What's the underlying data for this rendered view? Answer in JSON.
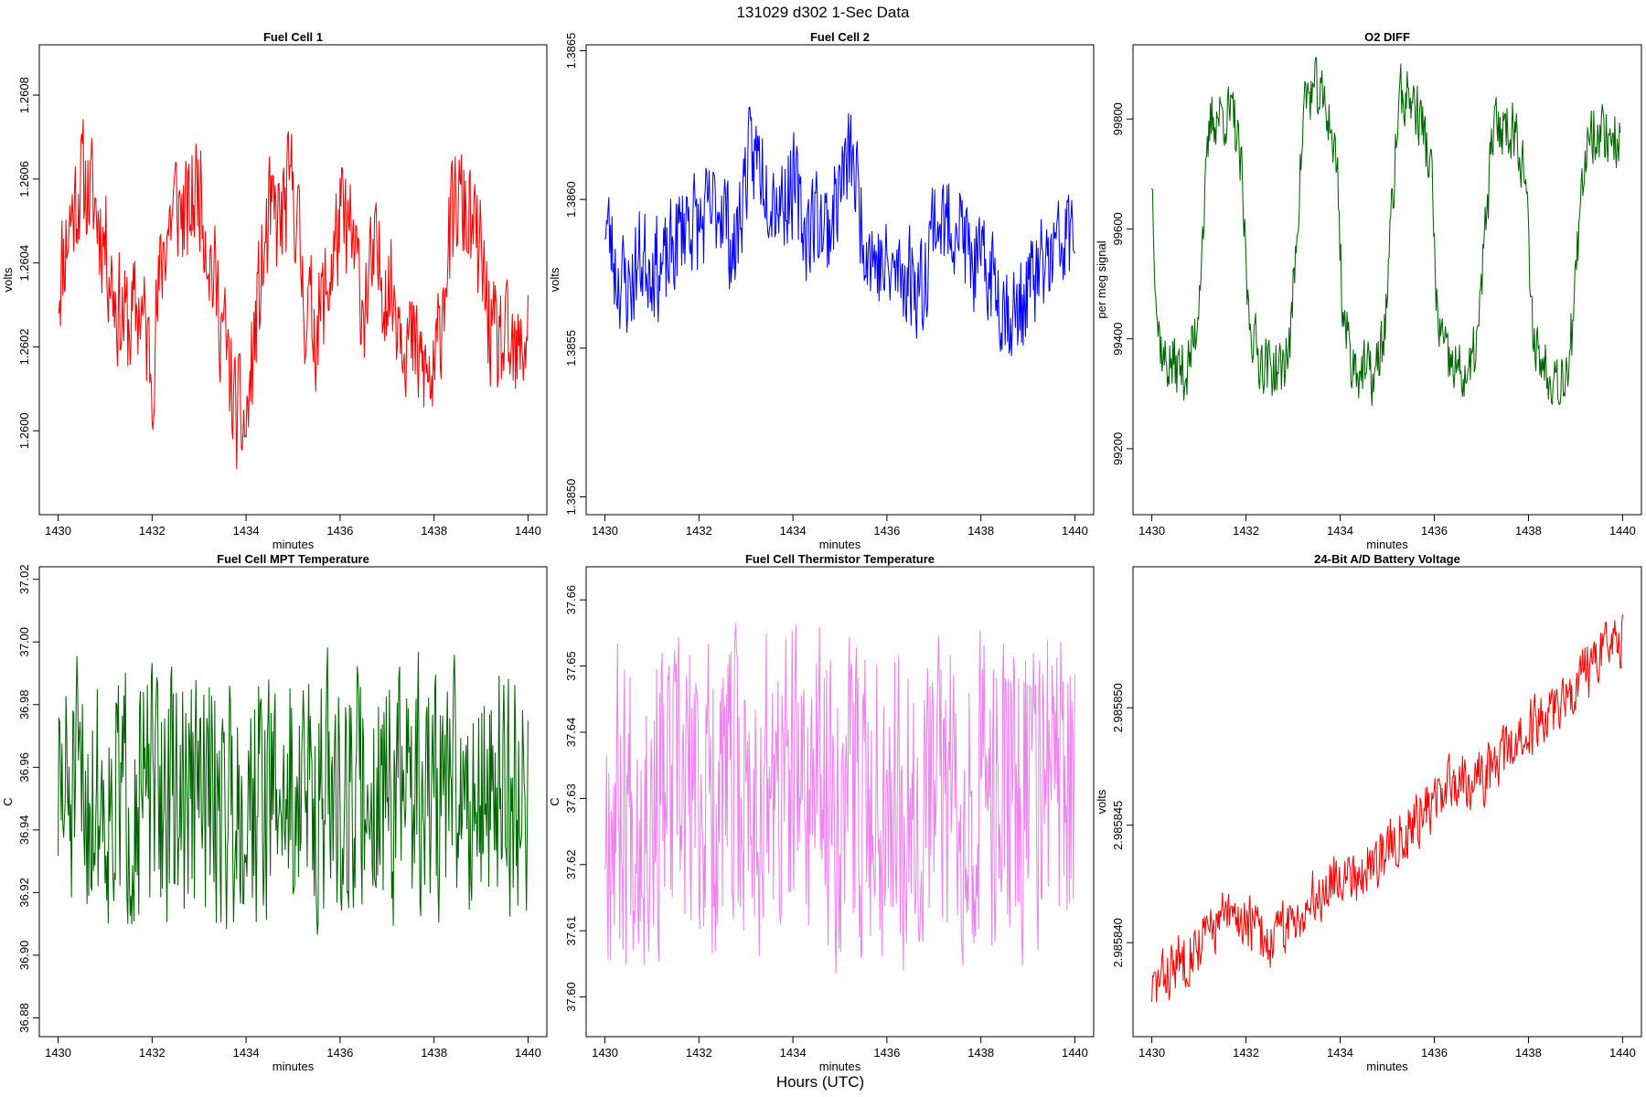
{
  "figure": {
    "title": "131029   d302   1-Sec Data",
    "common_xlabel": "Hours (UTC)"
  },
  "chart_data": [
    {
      "type": "line",
      "title": "Fuel Cell 1",
      "xlabel": "minutes",
      "ylabel": "volts",
      "color": "#ff0000",
      "xlim": [
        1429.6,
        1440.4
      ],
      "ylim": [
        1.2598,
        1.26092
      ],
      "xticks": [
        1430,
        1432,
        1434,
        1436,
        1438,
        1440
      ],
      "xtick_labels": [
        "1430",
        "1432",
        "1434",
        "1436",
        "1438",
        "1440"
      ],
      "yticks": [
        1.26,
        1.2602,
        1.2604,
        1.2606,
        1.2608
      ],
      "ytick_labels": [
        "1.2600",
        "1.2602",
        "1.2604",
        "1.2606",
        "1.2608"
      ],
      "series": [
        {
          "x": [
            1430.0,
            1430.25,
            1430.5,
            1430.75,
            1431.0,
            1431.25,
            1431.5,
            1431.75,
            1432.0,
            1432.25,
            1432.5,
            1432.75,
            1433.0,
            1433.25,
            1433.5,
            1433.75,
            1434.0,
            1434.25,
            1434.5,
            1434.75,
            1435.0,
            1435.25,
            1435.5,
            1435.75,
            1436.0,
            1436.25,
            1436.5,
            1436.75,
            1437.0,
            1437.25,
            1437.5,
            1437.75,
            1438.0,
            1438.25,
            1438.5,
            1438.75,
            1439.0,
            1439.25,
            1439.5,
            1439.75,
            1440.0
          ],
          "y": [
            1.26035,
            1.2605,
            1.2606,
            1.26055,
            1.26045,
            1.2603,
            1.26025,
            1.2603,
            1.26015,
            1.26045,
            1.26055,
            1.2605,
            1.2606,
            1.2604,
            1.26025,
            1.26005,
            1.26,
            1.2603,
            1.2605,
            1.2605,
            1.2606,
            1.2603,
            1.26025,
            1.26035,
            1.2605,
            1.26045,
            1.2603,
            1.2604,
            1.26035,
            1.2603,
            1.2602,
            1.26015,
            1.2601,
            1.2604,
            1.26055,
            1.2605,
            1.2604,
            1.2602,
            1.2602,
            1.26015,
            1.26025
          ],
          "noise": 0.00018,
          "seed": 11
        }
      ]
    },
    {
      "type": "line",
      "title": "Fuel Cell 2",
      "xlabel": "minutes",
      "ylabel": "volts",
      "color": "#0000ff",
      "xlim": [
        1429.6,
        1440.4
      ],
      "ylim": [
        1.38494,
        1.38652
      ],
      "xticks": [
        1430,
        1432,
        1434,
        1436,
        1438,
        1440
      ],
      "xtick_labels": [
        "1430",
        "1432",
        "1434",
        "1436",
        "1438",
        "1440"
      ],
      "yticks": [
        1.385,
        1.3855,
        1.386,
        1.3865
      ],
      "ytick_labels": [
        "1.3850",
        "1.3855",
        "1.3860",
        "1.3865"
      ],
      "series": [
        {
          "x": [
            1430.0,
            1430.25,
            1430.5,
            1430.75,
            1431.0,
            1431.25,
            1431.5,
            1431.75,
            1432.0,
            1432.25,
            1432.5,
            1432.75,
            1433.0,
            1433.25,
            1433.5,
            1433.75,
            1434.0,
            1434.25,
            1434.5,
            1434.75,
            1435.0,
            1435.25,
            1435.5,
            1435.75,
            1436.0,
            1436.25,
            1436.5,
            1436.75,
            1437.0,
            1437.25,
            1437.5,
            1437.75,
            1438.0,
            1438.25,
            1438.5,
            1438.75,
            1439.0,
            1439.25,
            1439.5,
            1439.75,
            1440.0
          ],
          "y": [
            1.38595,
            1.38575,
            1.3857,
            1.3858,
            1.3858,
            1.38575,
            1.38585,
            1.38595,
            1.3859,
            1.38595,
            1.386,
            1.3858,
            1.3861,
            1.38615,
            1.38605,
            1.386,
            1.38605,
            1.3859,
            1.38595,
            1.3859,
            1.38605,
            1.38615,
            1.3859,
            1.3858,
            1.38575,
            1.38575,
            1.38575,
            1.3857,
            1.38595,
            1.3859,
            1.38595,
            1.3858,
            1.38575,
            1.38575,
            1.38565,
            1.3856,
            1.3857,
            1.38575,
            1.3858,
            1.38585,
            1.3859
          ],
          "noise": 0.00022,
          "seed": 23
        }
      ]
    },
    {
      "type": "line",
      "title": "O2 DIFF",
      "xlabel": "minutes",
      "ylabel": "per meg signal",
      "color": "#006400",
      "xlim": [
        1429.6,
        1440.4
      ],
      "ylim": [
        99080,
        99935
      ],
      "xticks": [
        1430,
        1432,
        1434,
        1436,
        1438,
        1440
      ],
      "xtick_labels": [
        "1430",
        "1432",
        "1434",
        "1436",
        "1438",
        "1440"
      ],
      "yticks": [
        99200,
        99400,
        99600,
        99800
      ],
      "ytick_labels": [
        "99200",
        "99400",
        "99600",
        "99800"
      ],
      "series": [
        {
          "x": [
            1430.0,
            1430.12,
            1430.25,
            1430.5,
            1430.75,
            1430.95,
            1431.05,
            1431.25,
            1431.5,
            1431.75,
            1431.9,
            1432.05,
            1432.25,
            1432.5,
            1432.75,
            1432.95,
            1433.05,
            1433.25,
            1433.5,
            1433.75,
            1433.95,
            1434.05,
            1434.25,
            1434.5,
            1434.75,
            1434.95,
            1435.05,
            1435.25,
            1435.5,
            1435.75,
            1435.95,
            1436.05,
            1436.25,
            1436.5,
            1436.75,
            1436.95,
            1437.05,
            1437.25,
            1437.5,
            1437.75,
            1437.95,
            1438.05,
            1438.25,
            1438.5,
            1438.75,
            1438.95,
            1439.05,
            1439.25,
            1439.5,
            1439.75,
            1439.95
          ],
          "y": [
            99700,
            99430,
            99360,
            99350,
            99340,
            99420,
            99560,
            99800,
            99810,
            99800,
            99700,
            99450,
            99370,
            99350,
            99340,
            99400,
            99560,
            99840,
            99850,
            99810,
            99700,
            99450,
            99360,
            99340,
            99330,
            99420,
            99560,
            99840,
            99840,
            99790,
            99690,
            99450,
            99360,
            99340,
            99330,
            99420,
            99560,
            99780,
            99790,
            99780,
            99690,
            99440,
            99360,
            99340,
            99330,
            99420,
            99560,
            99780,
            99780,
            99770,
            99760
          ],
          "noise": 70,
          "seed": 37
        }
      ]
    },
    {
      "type": "line",
      "title": "Fuel Cell MPT Temperature",
      "xlabel": "minutes",
      "ylabel": "C",
      "color": "#006400",
      "xlim": [
        1429.6,
        1440.4
      ],
      "ylim": [
        36.874,
        37.024
      ],
      "xticks": [
        1430,
        1432,
        1434,
        1436,
        1438,
        1440
      ],
      "xtick_labels": [
        "1430",
        "1432",
        "1434",
        "1436",
        "1438",
        "1440"
      ],
      "yticks": [
        36.88,
        36.9,
        36.92,
        36.94,
        36.96,
        36.98,
        37.0,
        37.02
      ],
      "ytick_labels": [
        "36.88",
        "36.90",
        "36.92",
        "36.94",
        "36.96",
        "36.98",
        "37.00",
        "37.02"
      ],
      "series": [
        {
          "x": [
            1430.0,
            1440.0
          ],
          "y": [
            36.95,
            36.953
          ],
          "noise": 0.05,
          "seed": 51
        }
      ]
    },
    {
      "type": "line",
      "title": "Fuel Cell Thermistor Temperature",
      "xlabel": "minutes",
      "ylabel": "C",
      "color": "#ee82ee",
      "xlim": [
        1429.6,
        1440.4
      ],
      "ylim": [
        37.594,
        37.665
      ],
      "xticks": [
        1430,
        1432,
        1434,
        1436,
        1438,
        1440
      ],
      "xtick_labels": [
        "1430",
        "1432",
        "1434",
        "1436",
        "1438",
        "1440"
      ],
      "yticks": [
        37.6,
        37.61,
        37.62,
        37.63,
        37.64,
        37.65,
        37.66
      ],
      "ytick_labels": [
        "37.60",
        "37.61",
        "37.62",
        "37.63",
        "37.64",
        "37.65",
        "37.66"
      ],
      "series": [
        {
          "x": [
            1430.0,
            1440.0
          ],
          "y": [
            37.63,
            37.632
          ],
          "noise": 0.03,
          "seed": 67
        }
      ]
    },
    {
      "type": "line",
      "title": "24-Bit A/D Battery Voltage",
      "xlabel": "minutes",
      "ylabel": "volts",
      "color": "#ff0000",
      "xlim": [
        1429.6,
        1440.4
      ],
      "ylim": [
        2.985836,
        2.985856
      ],
      "xticks": [
        1430,
        1432,
        1434,
        1436,
        1438,
        1440
      ],
      "xtick_labels": [
        "1430",
        "1432",
        "1434",
        "1436",
        "1438",
        "1440"
      ],
      "yticks": [
        2.98584,
        2.985845,
        2.98585
      ],
      "ytick_labels": [
        "2.985840",
        "2.985845",
        "2.985850"
      ],
      "series": [
        {
          "x": [
            1430.0,
            1430.5,
            1431.0,
            1431.5,
            1432.0,
            1432.5,
            1433.0,
            1433.5,
            1434.0,
            1434.5,
            1435.0,
            1435.5,
            1436.0,
            1436.5,
            1437.0,
            1437.5,
            1438.0,
            1438.5,
            1439.0,
            1439.5,
            1440.0
          ],
          "y": [
            2.985838,
            2.985839,
            2.98584,
            2.985841,
            2.985841,
            2.98584,
            2.985841,
            2.985842,
            2.985843,
            2.985843,
            2.985844,
            2.985845,
            2.985846,
            2.985847,
            2.985847,
            2.985848,
            2.985849,
            2.98585,
            2.985851,
            2.985852,
            2.985853
          ],
          "noise": 1.5e-06,
          "seed": 83
        }
      ]
    }
  ]
}
